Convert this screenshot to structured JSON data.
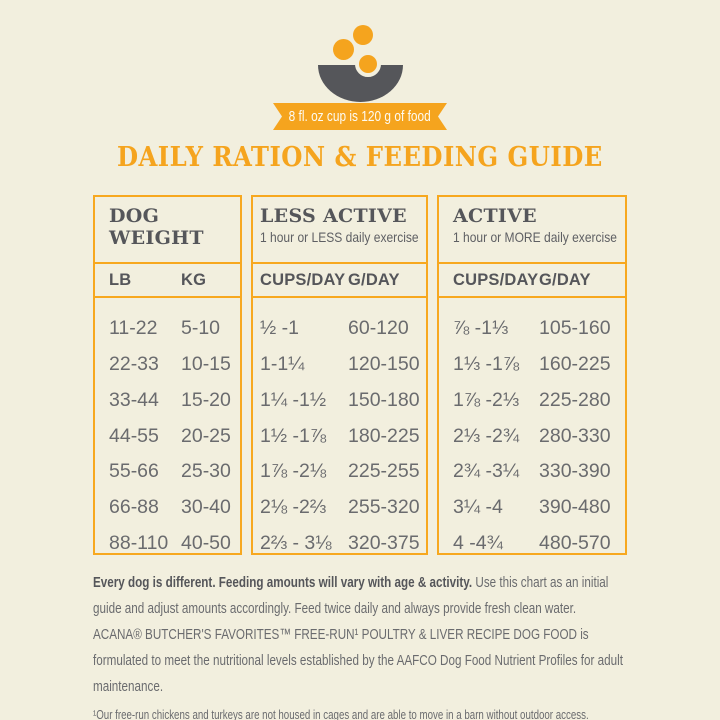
{
  "header": {
    "ribbon_text": "8 fl. oz cup is 120 g of food",
    "title": "DAILY RATION & FEEDING GUIDE"
  },
  "table": {
    "weight": {
      "title": "DOG WEIGHT",
      "col1": "LB",
      "col2": "KG"
    },
    "less_active": {
      "title": "LESS ACTIVE",
      "subtitle": "1 hour or LESS daily exercise",
      "col1": "CUPS/DAY",
      "col2": "G/DAY"
    },
    "active": {
      "title": "ACTIVE",
      "subtitle": "1 hour or MORE daily exercise",
      "col1": "CUPS/DAY",
      "col2": "G/DAY"
    },
    "rows": [
      {
        "lb": "11-22",
        "kg": "5-10",
        "la_cups": "½ -1",
        "la_g": "60-120",
        "a_cups": "⅞ -1⅓",
        "a_g": "105-160"
      },
      {
        "lb": "22-33",
        "kg": "10-15",
        "la_cups": "1-1¼",
        "la_g": "120-150",
        "a_cups": "1⅓ -1⅞",
        "a_g": "160-225"
      },
      {
        "lb": "33-44",
        "kg": "15-20",
        "la_cups": "1¼ -1½",
        "la_g": "150-180",
        "a_cups": "1⅞ -2⅓",
        "a_g": "225-280"
      },
      {
        "lb": "44-55",
        "kg": "20-25",
        "la_cups": "1½ -1⅞",
        "la_g": "180-225",
        "a_cups": "2⅓ -2¾",
        "a_g": "280-330"
      },
      {
        "lb": "55-66",
        "kg": "25-30",
        "la_cups": "1⅞ -2⅛",
        "la_g": "225-255",
        "a_cups": "2¾ -3¼",
        "a_g": "330-390"
      },
      {
        "lb": "66-88",
        "kg": "30-40",
        "la_cups": "2⅛ -2⅔",
        "la_g": "255-320",
        "a_cups": "3¼ -4",
        "a_g": "390-480"
      },
      {
        "lb": "88-110",
        "kg": "40-50",
        "la_cups": "2⅔ - 3⅛",
        "la_g": "320-375",
        "a_cups": "4 -4¾",
        "a_g": "480-570"
      }
    ]
  },
  "footer": {
    "note_bold": "Every dog is different. Feeding amounts will vary with age & activity.",
    "note_rest": " Use this chart as an initial guide and adjust amounts accordingly. Feed twice daily and always provide fresh clean water.",
    "aafco_statement": "ACANA® BUTCHER'S FAVORITES™ FREE-RUN¹ POULTRY & LIVER RECIPE DOG FOOD is formulated to meet the nutritional levels established by the AAFCO Dog Food Nutrient Profiles for adult maintenance.",
    "footnote": "¹Our free-run chickens and turkeys are not housed in cages and are able to move in a barn without outdoor access."
  },
  "colors": {
    "background_cream": "#F2EFDE",
    "accent_orange": "#F5A41E",
    "dark_slate": "#55565A",
    "body_gray": "#6A6B6E"
  }
}
